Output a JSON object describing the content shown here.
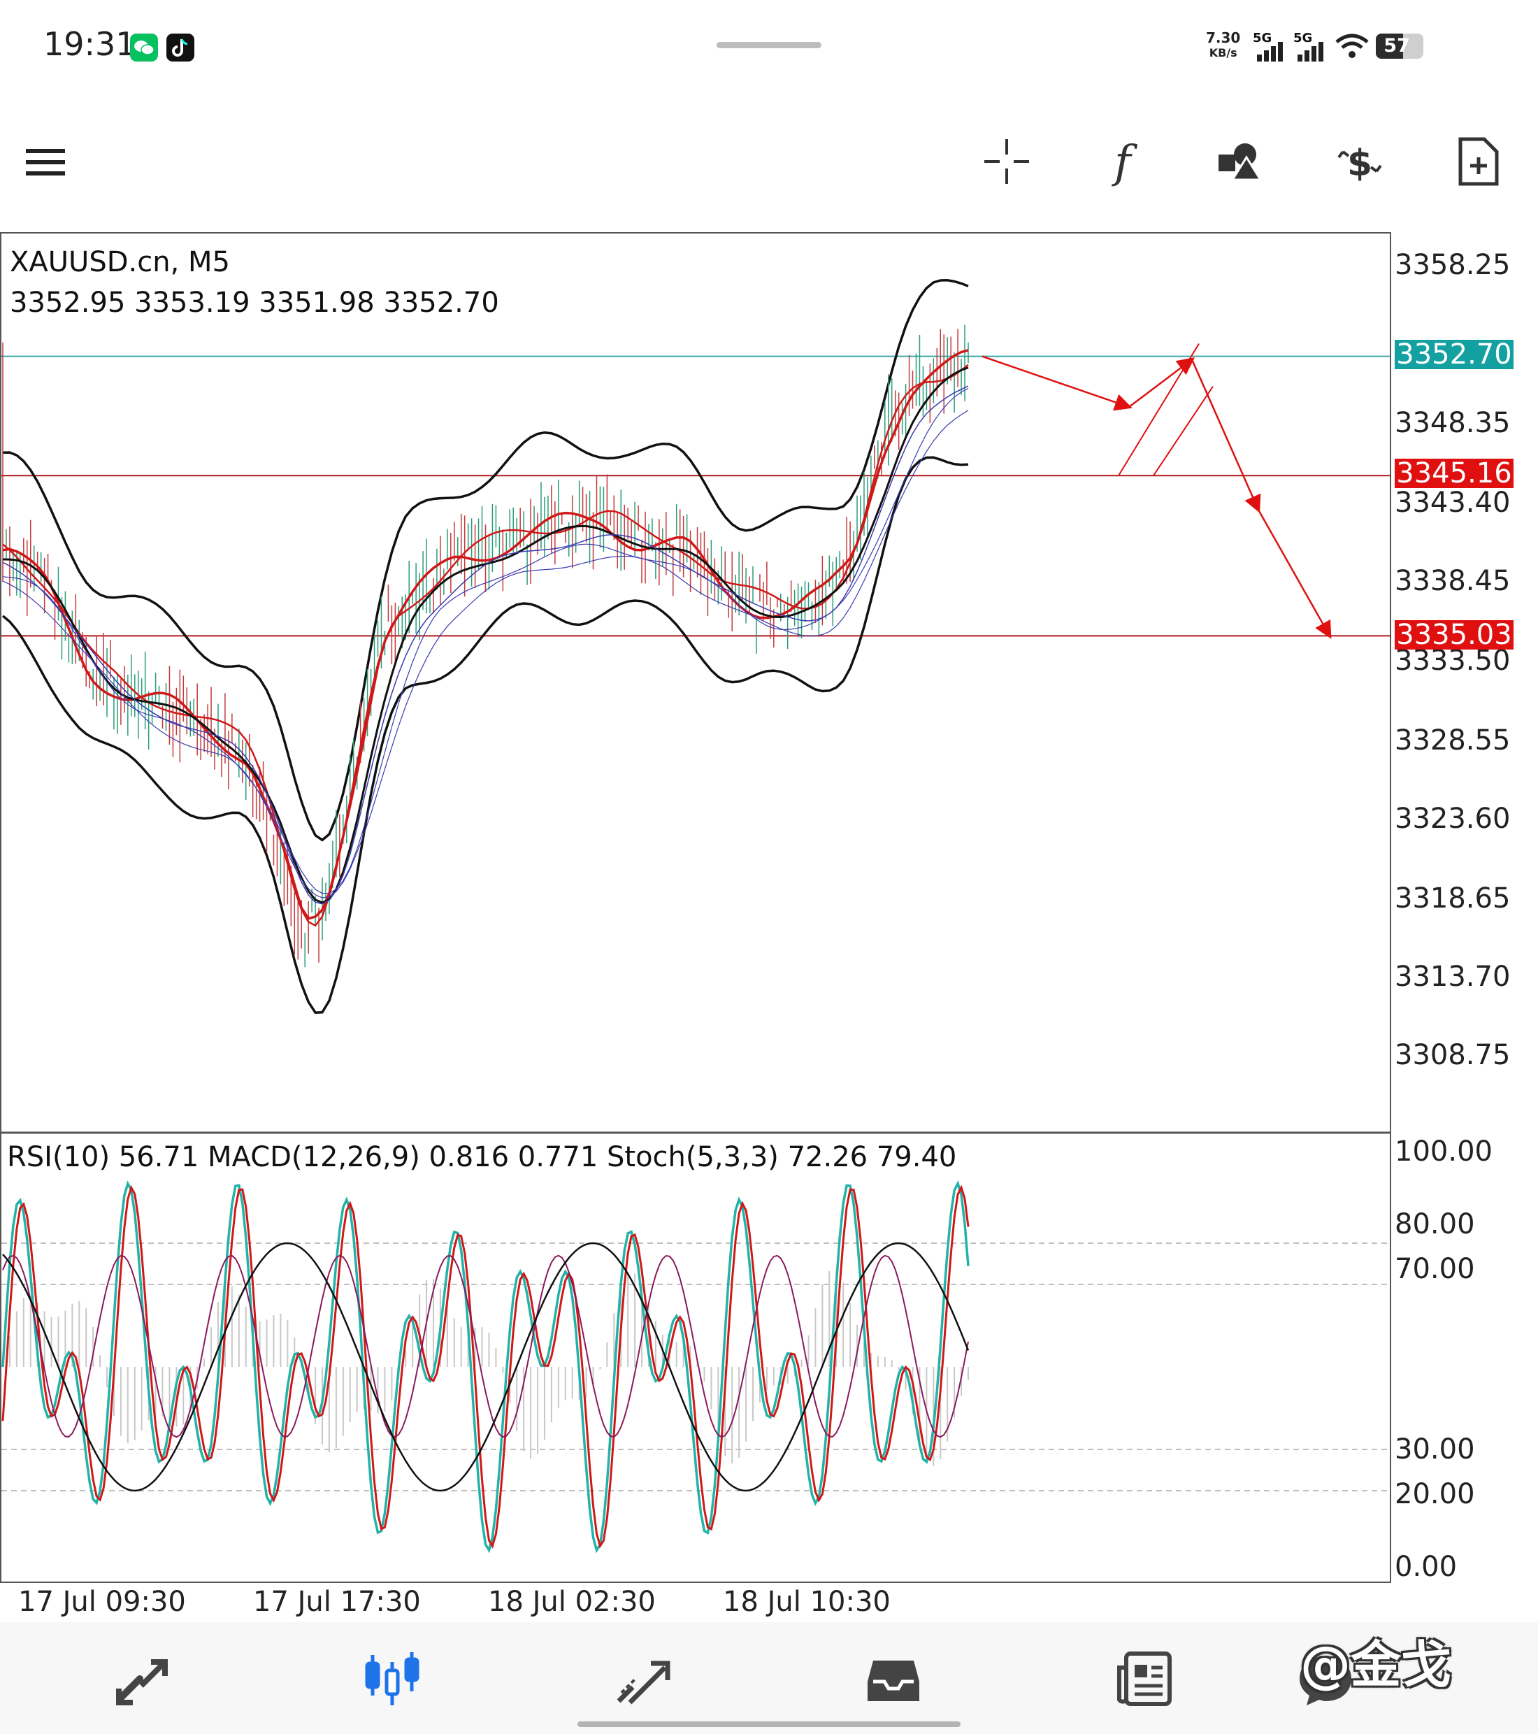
{
  "status_bar": {
    "time": "19:31",
    "net_speed_value": "7.30",
    "net_speed_unit": "KB/s",
    "signal_1": "5G",
    "signal_2": "5G",
    "battery": "57",
    "battery_level": 0.57
  },
  "toolbar": {
    "icons": [
      "menu-icon",
      "crosshair-icon",
      "function-icon",
      "shapes-icon",
      "dollar-trade-icon",
      "new-document-icon"
    ]
  },
  "chart": {
    "symbol": "XAUUSD.cn, M5",
    "ohlc": "3352.95 3353.19 3351.98 3352.70",
    "price_axis": [
      "3358.25",
      "3348.35",
      "3343.40",
      "3338.45",
      "3333.50",
      "3328.55",
      "3323.60",
      "3318.65",
      "3313.70",
      "3308.75"
    ],
    "price_tags": [
      {
        "label": "3352.70",
        "color": "#13a0a0"
      },
      {
        "label": "3345.16",
        "color": "#e01010"
      },
      {
        "label": "3335.03",
        "color": "#e01010"
      }
    ],
    "indicator_label": "RSI(10) 56.71 MACD(12,26,9) 0.816 0.771 Stoch(5,3,3) 72.26 79.40",
    "indicator_axis": [
      "100.00",
      "80.00",
      "70.00",
      "30.00",
      "20.00",
      "0.00"
    ],
    "time_axis": [
      "17 Jul 09:30",
      "17 Jul 17:30",
      "18 Jul 02:30",
      "18 Jul 10:30"
    ]
  },
  "chart_data": {
    "type": "line",
    "title": "XAUUSD.cn, M5",
    "ylim": [
      3304.5,
      3360.2
    ],
    "horizontal_lines": [
      3352.7,
      3345.16,
      3335.03
    ],
    "price_path": [
      [
        0,
        3340.5
      ],
      [
        12,
        3338.0
      ],
      [
        24,
        3333.0
      ],
      [
        36,
        3331.0
      ],
      [
        48,
        3330.5
      ],
      [
        60,
        3329.0
      ],
      [
        70,
        3327.5
      ],
      [
        80,
        3321.0
      ],
      [
        86,
        3316.0
      ],
      [
        92,
        3317.5
      ],
      [
        100,
        3326.0
      ],
      [
        108,
        3335.0
      ],
      [
        118,
        3337.5
      ],
      [
        130,
        3340.0
      ],
      [
        145,
        3341.0
      ],
      [
        160,
        3342.0
      ],
      [
        172,
        3342.5
      ],
      [
        182,
        3341.0
      ],
      [
        196,
        3340.5
      ],
      [
        206,
        3338.0
      ],
      [
        216,
        3337.0
      ],
      [
        226,
        3336.5
      ],
      [
        236,
        3337.5
      ],
      [
        244,
        3340.0
      ],
      [
        252,
        3347.0
      ],
      [
        260,
        3350.5
      ],
      [
        270,
        3351.5
      ],
      [
        278,
        3352.7
      ]
    ],
    "projection": [
      3352.7,
      3349.5,
      3352.5,
      3343.0,
      3335.03
    ],
    "indicators": {
      "RSI(10)": 56.71,
      "MACD": [
        0.816,
        0.771
      ],
      "Stoch": [
        72.26,
        79.4
      ]
    },
    "indicator_levels": [
      80,
      70,
      30,
      20
    ]
  },
  "bottom_nav": {
    "items": [
      "quotes-icon",
      "chart-icon",
      "trade-icon",
      "history-icon",
      "news-icon",
      "messages-icon"
    ],
    "active": "chart-icon"
  },
  "watermark": "@金戈"
}
